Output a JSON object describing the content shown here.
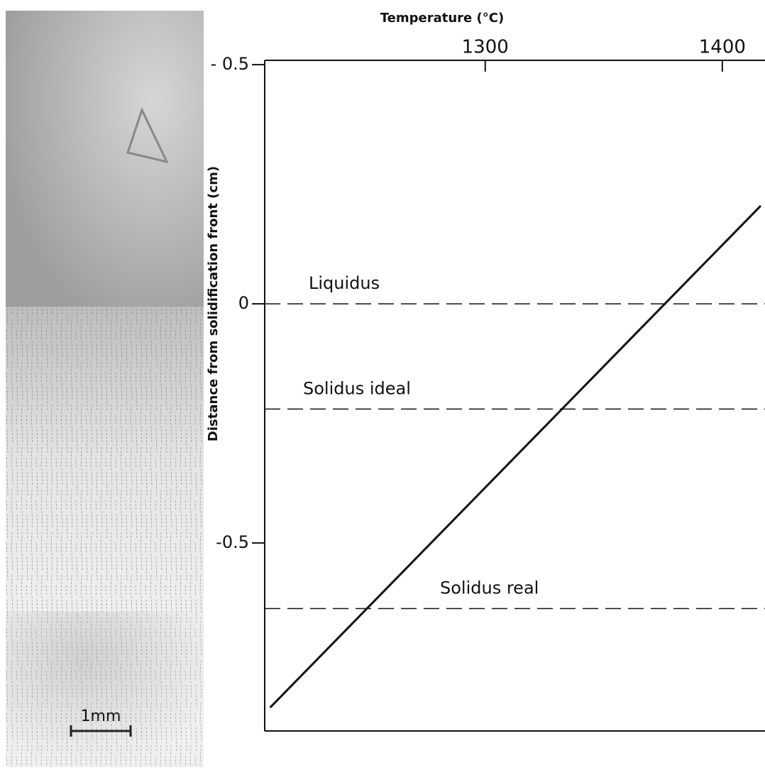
{
  "chart_data": {
    "type": "line",
    "title": "Temperature (°C)",
    "ylabel": "Distance from solidification front (cm)",
    "x": [
      1209.3,
      1416.2
    ],
    "values": [
      -0.844,
      0.205
    ],
    "color": "#111111",
    "xlim": [
      1207,
      1418
    ],
    "xticks": [
      1300,
      1400
    ],
    "ylim": [
      -0.893,
      0.509
    ],
    "yticks": [
      {
        "value": 0.5,
        "label": "- 0.5"
      },
      {
        "value": 0,
        "label": "0"
      },
      -0.5
    ],
    "reference_lines": [
      {
        "label": "Liquidus",
        "value": 0
      },
      {
        "label": "Solidus ideal",
        "value": -0.22
      },
      {
        "label": "Solidus real",
        "value": -0.637
      }
    ]
  },
  "photo": {
    "scale_label": "1mm"
  }
}
